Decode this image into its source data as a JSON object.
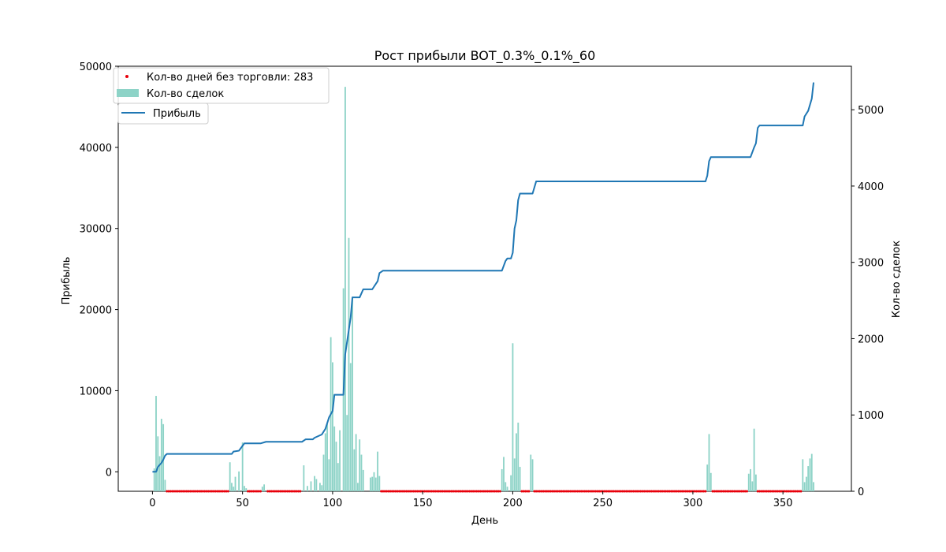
{
  "chart_data": {
    "type": "bar+line+scatter",
    "title": "Рост прибыли BOT_0.3%_0.1%_60",
    "xlabel": "День",
    "ylabel_left": "Прибыль",
    "ylabel_right": "Кол-во сделок",
    "xlim": [
      -19,
      388
    ],
    "ylim_left": [
      -2400,
      50000
    ],
    "ylim_right": [
      0,
      5570
    ],
    "x_ticks": [
      0,
      50,
      100,
      150,
      200,
      250,
      300,
      350
    ],
    "y_ticks_left": [
      0,
      10000,
      20000,
      30000,
      40000,
      50000
    ],
    "y_ticks_right": [
      0,
      1000,
      2000,
      3000,
      4000,
      5000
    ],
    "grid": false,
    "legend": {
      "position": "top-left",
      "entries": [
        {
          "label": "Кол-во дней без торговли: 283",
          "kind": "scatter",
          "color": "#e8000b"
        },
        {
          "label": "Кол-во сделок",
          "kind": "bar",
          "color": "#8dd3c7"
        },
        {
          "label": "Прибыль",
          "kind": "line",
          "color": "#1f77b4"
        }
      ]
    },
    "colors": {
      "profit": "#1f77b4",
      "trades": "#8dd3c7",
      "idle_days": "#e8000b"
    },
    "trades_bars": [
      {
        "x": 1,
        "y": 300
      },
      {
        "x": 2,
        "y": 1250
      },
      {
        "x": 3,
        "y": 720
      },
      {
        "x": 4,
        "y": 460
      },
      {
        "x": 5,
        "y": 950
      },
      {
        "x": 6,
        "y": 880
      },
      {
        "x": 7,
        "y": 150
      },
      {
        "x": 43,
        "y": 380
      },
      {
        "x": 44,
        "y": 110
      },
      {
        "x": 45,
        "y": 60
      },
      {
        "x": 46,
        "y": 190
      },
      {
        "x": 48,
        "y": 260
      },
      {
        "x": 50,
        "y": 640
      },
      {
        "x": 51,
        "y": 70
      },
      {
        "x": 52,
        "y": 40
      },
      {
        "x": 61,
        "y": 60
      },
      {
        "x": 62,
        "y": 90
      },
      {
        "x": 84,
        "y": 340
      },
      {
        "x": 86,
        "y": 70
      },
      {
        "x": 88,
        "y": 130
      },
      {
        "x": 90,
        "y": 200
      },
      {
        "x": 91,
        "y": 160
      },
      {
        "x": 93,
        "y": 110
      },
      {
        "x": 94,
        "y": 80
      },
      {
        "x": 95,
        "y": 480
      },
      {
        "x": 96,
        "y": 760
      },
      {
        "x": 97,
        "y": 880
      },
      {
        "x": 98,
        "y": 420
      },
      {
        "x": 99,
        "y": 2020
      },
      {
        "x": 100,
        "y": 1690
      },
      {
        "x": 101,
        "y": 850
      },
      {
        "x": 102,
        "y": 650
      },
      {
        "x": 103,
        "y": 370
      },
      {
        "x": 104,
        "y": 800
      },
      {
        "x": 106,
        "y": 2660
      },
      {
        "x": 107,
        "y": 5300
      },
      {
        "x": 108,
        "y": 1000
      },
      {
        "x": 109,
        "y": 3320
      },
      {
        "x": 110,
        "y": 1680
      },
      {
        "x": 111,
        "y": 2550
      },
      {
        "x": 112,
        "y": 550
      },
      {
        "x": 113,
        "y": 750
      },
      {
        "x": 114,
        "y": 110
      },
      {
        "x": 115,
        "y": 680
      },
      {
        "x": 116,
        "y": 480
      },
      {
        "x": 117,
        "y": 280
      },
      {
        "x": 121,
        "y": 180
      },
      {
        "x": 122,
        "y": 190
      },
      {
        "x": 123,
        "y": 250
      },
      {
        "x": 124,
        "y": 180
      },
      {
        "x": 125,
        "y": 520
      },
      {
        "x": 126,
        "y": 200
      },
      {
        "x": 194,
        "y": 290
      },
      {
        "x": 195,
        "y": 450
      },
      {
        "x": 196,
        "y": 120
      },
      {
        "x": 197,
        "y": 60
      },
      {
        "x": 199,
        "y": 210
      },
      {
        "x": 200,
        "y": 1940
      },
      {
        "x": 201,
        "y": 430
      },
      {
        "x": 202,
        "y": 760
      },
      {
        "x": 203,
        "y": 900
      },
      {
        "x": 204,
        "y": 320
      },
      {
        "x": 210,
        "y": 480
      },
      {
        "x": 211,
        "y": 420
      },
      {
        "x": 308,
        "y": 350
      },
      {
        "x": 309,
        "y": 750
      },
      {
        "x": 310,
        "y": 240
      },
      {
        "x": 331,
        "y": 230
      },
      {
        "x": 332,
        "y": 290
      },
      {
        "x": 333,
        "y": 130
      },
      {
        "x": 334,
        "y": 820
      },
      {
        "x": 335,
        "y": 220
      },
      {
        "x": 361,
        "y": 420
      },
      {
        "x": 362,
        "y": 120
      },
      {
        "x": 363,
        "y": 190
      },
      {
        "x": 364,
        "y": 330
      },
      {
        "x": 365,
        "y": 430
      },
      {
        "x": 366,
        "y": 490
      },
      {
        "x": 367,
        "y": 120
      }
    ],
    "profit_line": [
      [
        0,
        0
      ],
      [
        2,
        0
      ],
      [
        3,
        600
      ],
      [
        5,
        1100
      ],
      [
        6,
        1500
      ],
      [
        7,
        2000
      ],
      [
        8,
        2200
      ],
      [
        44,
        2200
      ],
      [
        45,
        2500
      ],
      [
        48,
        2600
      ],
      [
        50,
        3200
      ],
      [
        51,
        3500
      ],
      [
        60,
        3500
      ],
      [
        63,
        3700
      ],
      [
        83,
        3700
      ],
      [
        85,
        4000
      ],
      [
        89,
        4000
      ],
      [
        90,
        4200
      ],
      [
        94,
        4600
      ],
      [
        96,
        5300
      ],
      [
        98,
        6700
      ],
      [
        100,
        7500
      ],
      [
        101,
        9500
      ],
      [
        106,
        9500
      ],
      [
        107,
        14500
      ],
      [
        108,
        16000
      ],
      [
        110,
        19000
      ],
      [
        111,
        21500
      ],
      [
        115,
        21500
      ],
      [
        117,
        22500
      ],
      [
        122,
        22500
      ],
      [
        125,
        23500
      ],
      [
        126,
        24500
      ],
      [
        128,
        24800
      ],
      [
        194,
        24800
      ],
      [
        196,
        26000
      ],
      [
        197,
        26300
      ],
      [
        199,
        26300
      ],
      [
        200,
        27000
      ],
      [
        201,
        30000
      ],
      [
        202,
        31000
      ],
      [
        203,
        33500
      ],
      [
        204,
        34300
      ],
      [
        211,
        34300
      ],
      [
        213,
        35800
      ],
      [
        307,
        35800
      ],
      [
        308,
        36500
      ],
      [
        309,
        38300
      ],
      [
        310,
        38800
      ],
      [
        332,
        38800
      ],
      [
        334,
        40000
      ],
      [
        335,
        40500
      ],
      [
        336,
        42400
      ],
      [
        337,
        42700
      ],
      [
        361,
        42700
      ],
      [
        362,
        43800
      ],
      [
        364,
        44500
      ],
      [
        366,
        46000
      ],
      [
        367,
        48000
      ]
    ],
    "idle_day_markers_y": -2400,
    "idle_day_ranges": [
      [
        8,
        42
      ],
      [
        53,
        60
      ],
      [
        64,
        82
      ],
      [
        127,
        193
      ],
      [
        205,
        209
      ],
      [
        212,
        307
      ],
      [
        311,
        330
      ],
      [
        336,
        360
      ]
    ]
  }
}
